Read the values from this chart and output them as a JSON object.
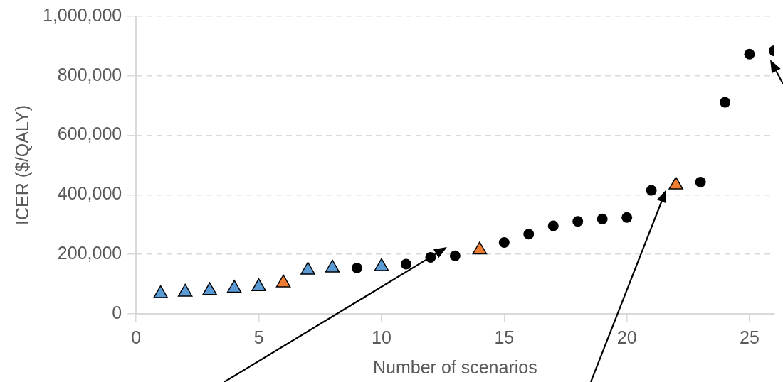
{
  "chart_data": {
    "type": "scatter",
    "xlabel": "Number of scenarios",
    "ylabel": "ICER ($/QALY)",
    "xlim": [
      0,
      26
    ],
    "xticks": [
      0,
      5,
      10,
      15,
      20,
      25
    ],
    "ylim": [
      0,
      1000000
    ],
    "yticks": [
      0,
      {
        "value": 200000,
        "label": "200,000"
      },
      {
        "value": 400000,
        "label": "400,000"
      },
      {
        "value": 600000,
        "label": "600,000"
      },
      {
        "value": 800000,
        "label": "800,000"
      },
      {
        "value": 1000000,
        "label": "1,000,000"
      }
    ],
    "grid": "y",
    "legend": false,
    "series": [
      {
        "color": "#5b9bd5",
        "marker": "triangle",
        "x": [
          1,
          2,
          3,
          4,
          5,
          7,
          8,
          10
        ],
        "values": [
          68000,
          73000,
          78000,
          86000,
          91000,
          147000,
          154000,
          159000
        ]
      },
      {
        "color": "#ed7d31",
        "marker": "triangle",
        "x": [
          6,
          14,
          22
        ],
        "values": [
          104000,
          215000,
          433000
        ]
      },
      {
        "color": "#000000",
        "marker": "circle",
        "x": [
          9,
          11,
          12,
          13,
          15,
          16,
          17,
          18,
          19,
          20,
          21,
          23,
          24,
          25,
          26
        ],
        "values": [
          154000,
          167000,
          190000,
          195000,
          240000,
          268000,
          296000,
          311000,
          319000,
          324000,
          415000,
          443000,
          711000,
          873000,
          884000
        ]
      }
    ]
  }
}
